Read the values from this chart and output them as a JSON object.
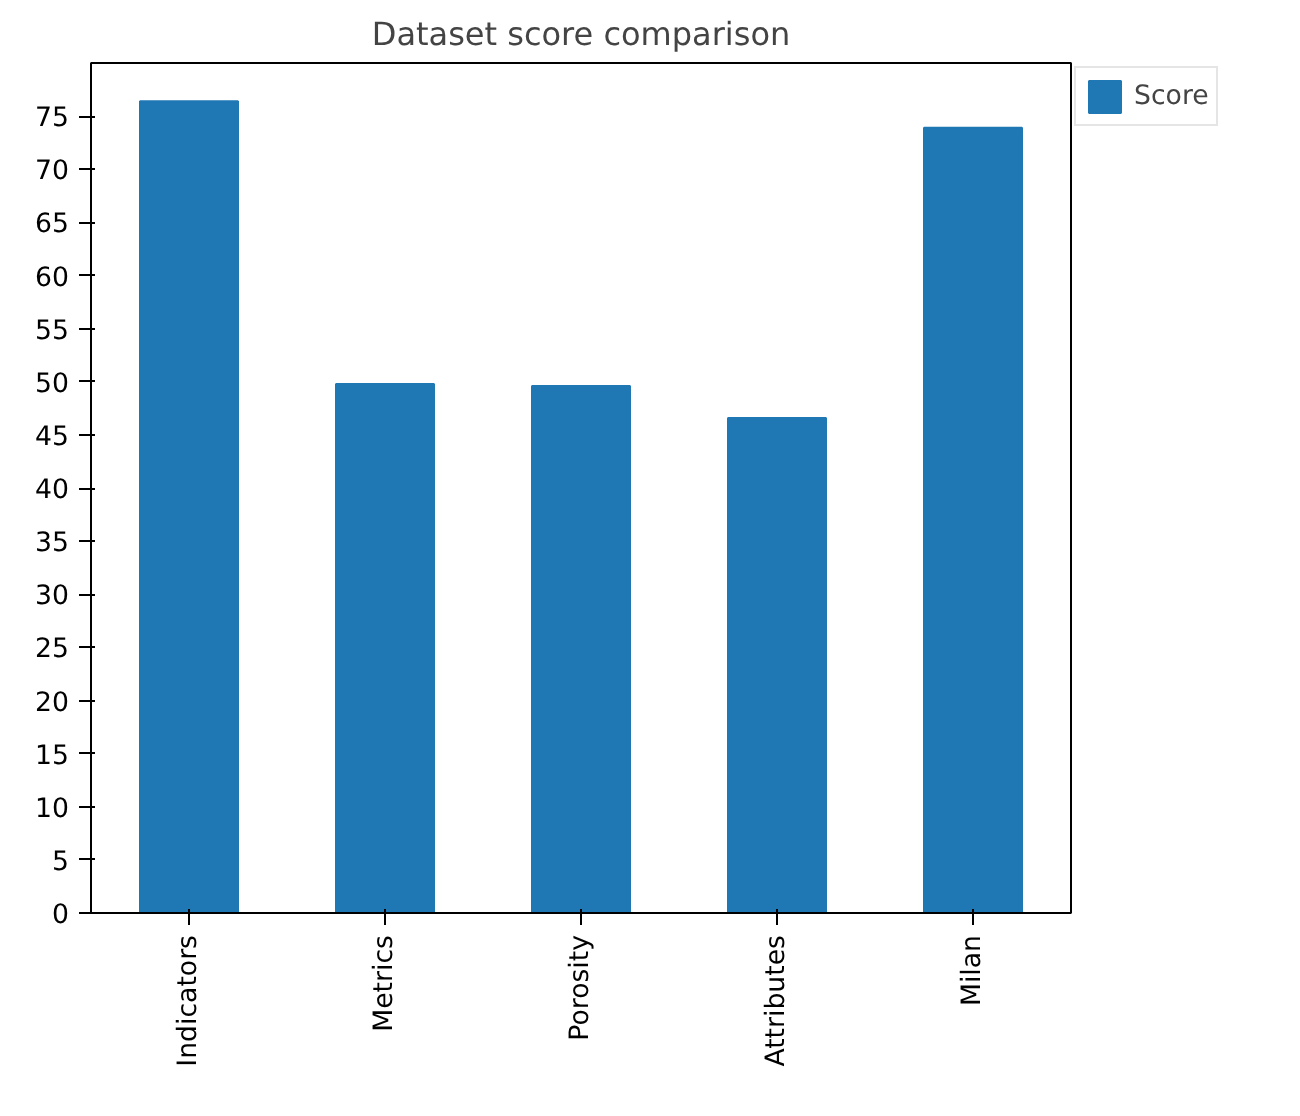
{
  "chart_data": {
    "type": "bar",
    "title": "Dataset score comparison",
    "categories": [
      "Indicators",
      "Metrics",
      "Porosity",
      "Attributes",
      "Milan"
    ],
    "series": [
      {
        "name": "Score",
        "color": "#1f77b4",
        "values": [
          76.4,
          49.8,
          49.6,
          46.6,
          73.9
        ]
      }
    ],
    "ylim": [
      0,
      80
    ],
    "yticks": [
      0,
      5,
      10,
      15,
      20,
      25,
      30,
      35,
      40,
      45,
      50,
      55,
      60,
      65,
      70,
      75
    ],
    "grid": false,
    "legend": "top right"
  }
}
